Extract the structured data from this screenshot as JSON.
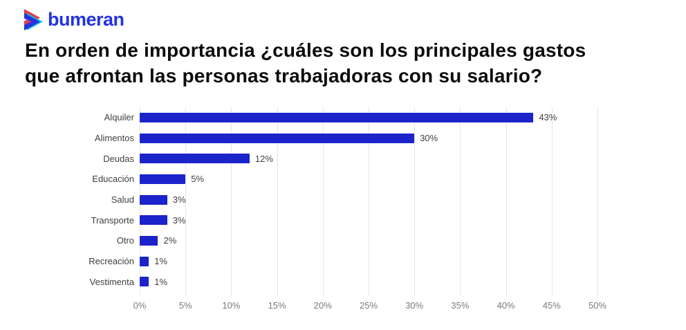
{
  "logo": {
    "text": "bumeran",
    "icon": "bumeran-chevron-icon",
    "brand_color": "#2433e0",
    "icon_colors": {
      "red": "#e23a52",
      "teal": "#14c3cf",
      "blue": "#2433e0"
    }
  },
  "title": {
    "lines": [
      "En orden de importancia ¿cuáles son los principales gastos",
      "que afrontan las personas trabajadoras con su salario?"
    ]
  },
  "chart_data": {
    "type": "bar",
    "orientation": "horizontal",
    "title": "",
    "xlabel": "",
    "ylabel": "",
    "categories": [
      "Alquiler",
      "Alimentos",
      "Deudas",
      "Educación",
      "Salud",
      "Transporte",
      "Otro",
      "Recreación",
      "Vestimenta"
    ],
    "values": [
      43,
      30,
      12,
      5,
      3,
      3,
      2,
      1,
      1
    ],
    "value_labels": [
      "43%",
      "30%",
      "12%",
      "5%",
      "3%",
      "3%",
      "2%",
      "1%",
      "1%"
    ],
    "xlim": [
      0,
      50
    ],
    "x_ticks": [
      0,
      5,
      10,
      15,
      20,
      25,
      30,
      35,
      40,
      45,
      50
    ],
    "x_tick_labels": [
      "0%",
      "5%",
      "10%",
      "15%",
      "20%",
      "25%",
      "30%",
      "35%",
      "40%",
      "45%",
      "50%"
    ],
    "grid": true,
    "legend": "none",
    "bar_color": "#1b23cb",
    "gridline_color": "#e4e4e4",
    "label_color": "#3f3f3f",
    "tick_color": "#7a7a7a"
  }
}
